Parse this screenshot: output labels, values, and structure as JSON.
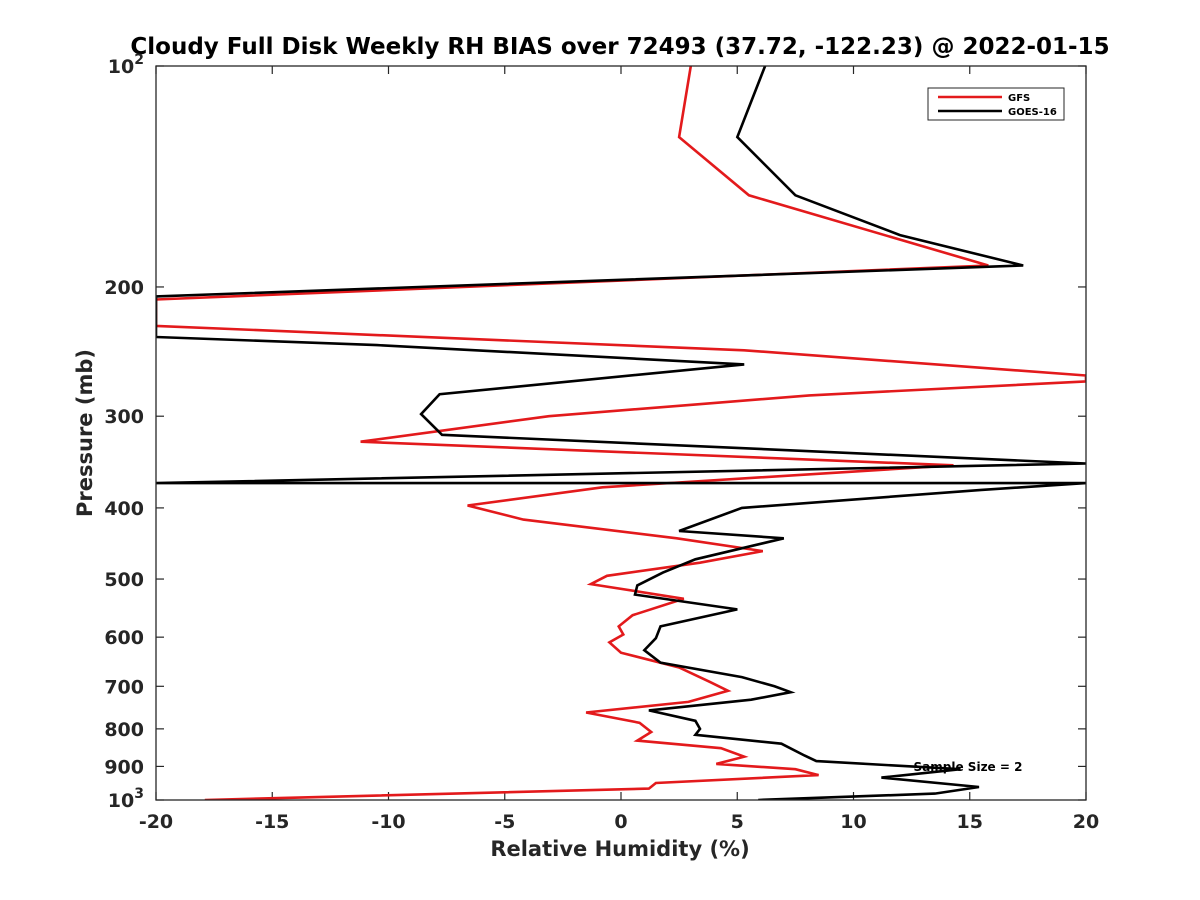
{
  "chart_data": {
    "type": "line",
    "title": "Cloudy Full Disk Weekly RH BIAS over 72493 (37.72, -122.23) @ 2022-01-15",
    "xlabel": "Relative Humidity (%)",
    "ylabel": "Pressure (mb)",
    "xlim": [
      -20,
      20
    ],
    "ylim": [
      100,
      1000
    ],
    "yscale": "log",
    "y_reversed": true,
    "grid": false,
    "legend_position": "top-right",
    "x_ticks": [
      "-20",
      "-15",
      "-10",
      "-5",
      "0",
      "5",
      "10",
      "15",
      "20"
    ],
    "y_ticks": [
      {
        "value": 100,
        "base": "10",
        "exp": "2"
      },
      {
        "value": 200,
        "label": "200"
      },
      {
        "value": 300,
        "label": "300"
      },
      {
        "value": 400,
        "label": "400"
      },
      {
        "value": 500,
        "label": "500"
      },
      {
        "value": 600,
        "label": "600"
      },
      {
        "value": 700,
        "label": "700"
      },
      {
        "value": 800,
        "label": "800"
      },
      {
        "value": 900,
        "label": "900"
      },
      {
        "value": 1000,
        "base": "10",
        "exp": "3"
      }
    ],
    "annotation": "Sample Size = 2",
    "series": [
      {
        "name": "GFS",
        "color": "#e31a1c",
        "points": [
          [
            3.0,
            100
          ],
          [
            2.5,
            125
          ],
          [
            5.5,
            150
          ],
          [
            15.8,
            187
          ],
          [
            -20,
            208
          ],
          [
            -20,
            226
          ],
          [
            5.3,
            244
          ],
          [
            20,
            264
          ],
          [
            20,
            269
          ],
          [
            8.1,
            281
          ],
          [
            2.7,
            290
          ],
          [
            -3.1,
            300
          ],
          [
            -11.2,
            325
          ],
          [
            14.3,
            350
          ],
          [
            -0.8,
            375
          ],
          [
            -6.6,
            397
          ],
          [
            -4.2,
            415
          ],
          [
            2.4,
            440
          ],
          [
            6.1,
            458
          ],
          [
            3.4,
            475
          ],
          [
            -0.6,
            495
          ],
          [
            -1.3,
            508
          ],
          [
            2.7,
            532
          ],
          [
            0.5,
            560
          ],
          [
            -0.1,
            580
          ],
          [
            0.1,
            595
          ],
          [
            -0.5,
            610
          ],
          [
            0,
            630
          ],
          [
            2.5,
            660
          ],
          [
            3.8,
            690
          ],
          [
            4.6,
            710
          ],
          [
            2.9,
            735
          ],
          [
            -1.5,
            760
          ],
          [
            0.8,
            785
          ],
          [
            1.3,
            808
          ],
          [
            0.7,
            830
          ],
          [
            4.3,
            850
          ],
          [
            5.3,
            873
          ],
          [
            4.1,
            893
          ],
          [
            7.5,
            908
          ],
          [
            8.5,
            925
          ],
          [
            1.5,
            948
          ],
          [
            1.2,
            965
          ],
          [
            -17.9,
            1000
          ]
        ]
      },
      {
        "name": "GOES-16",
        "color": "#000000",
        "points": [
          [
            6.2,
            100
          ],
          [
            5.0,
            125
          ],
          [
            7.5,
            150
          ],
          [
            12.0,
            170
          ],
          [
            17.3,
            187
          ],
          [
            -20,
            206
          ],
          [
            -20,
            234
          ],
          [
            -10.5,
            240
          ],
          [
            5.3,
            255
          ],
          [
            -7.8,
            280
          ],
          [
            -8.6,
            298
          ],
          [
            -7.7,
            318
          ],
          [
            20,
            348
          ],
          [
            -20,
            370
          ],
          [
            20,
            370
          ],
          [
            15.5,
            378
          ],
          [
            5.2,
            400
          ],
          [
            2.5,
            430
          ],
          [
            7.0,
            440
          ],
          [
            3.2,
            470
          ],
          [
            1.8,
            490
          ],
          [
            0.7,
            510
          ],
          [
            0.6,
            525
          ],
          [
            5.0,
            550
          ],
          [
            1.7,
            580
          ],
          [
            1.5,
            602
          ],
          [
            1.0,
            625
          ],
          [
            1.7,
            650
          ],
          [
            5.2,
            680
          ],
          [
            6.6,
            700
          ],
          [
            7.3,
            713
          ],
          [
            5.6,
            730
          ],
          [
            1.2,
            755
          ],
          [
            3.2,
            780
          ],
          [
            3.4,
            800
          ],
          [
            3.2,
            815
          ],
          [
            6.9,
            838
          ],
          [
            7.9,
            870
          ],
          [
            8.4,
            885
          ],
          [
            14.6,
            908
          ],
          [
            11.2,
            932
          ],
          [
            15.4,
            960
          ],
          [
            13.5,
            980
          ],
          [
            5.9,
            1000
          ]
        ]
      }
    ]
  }
}
